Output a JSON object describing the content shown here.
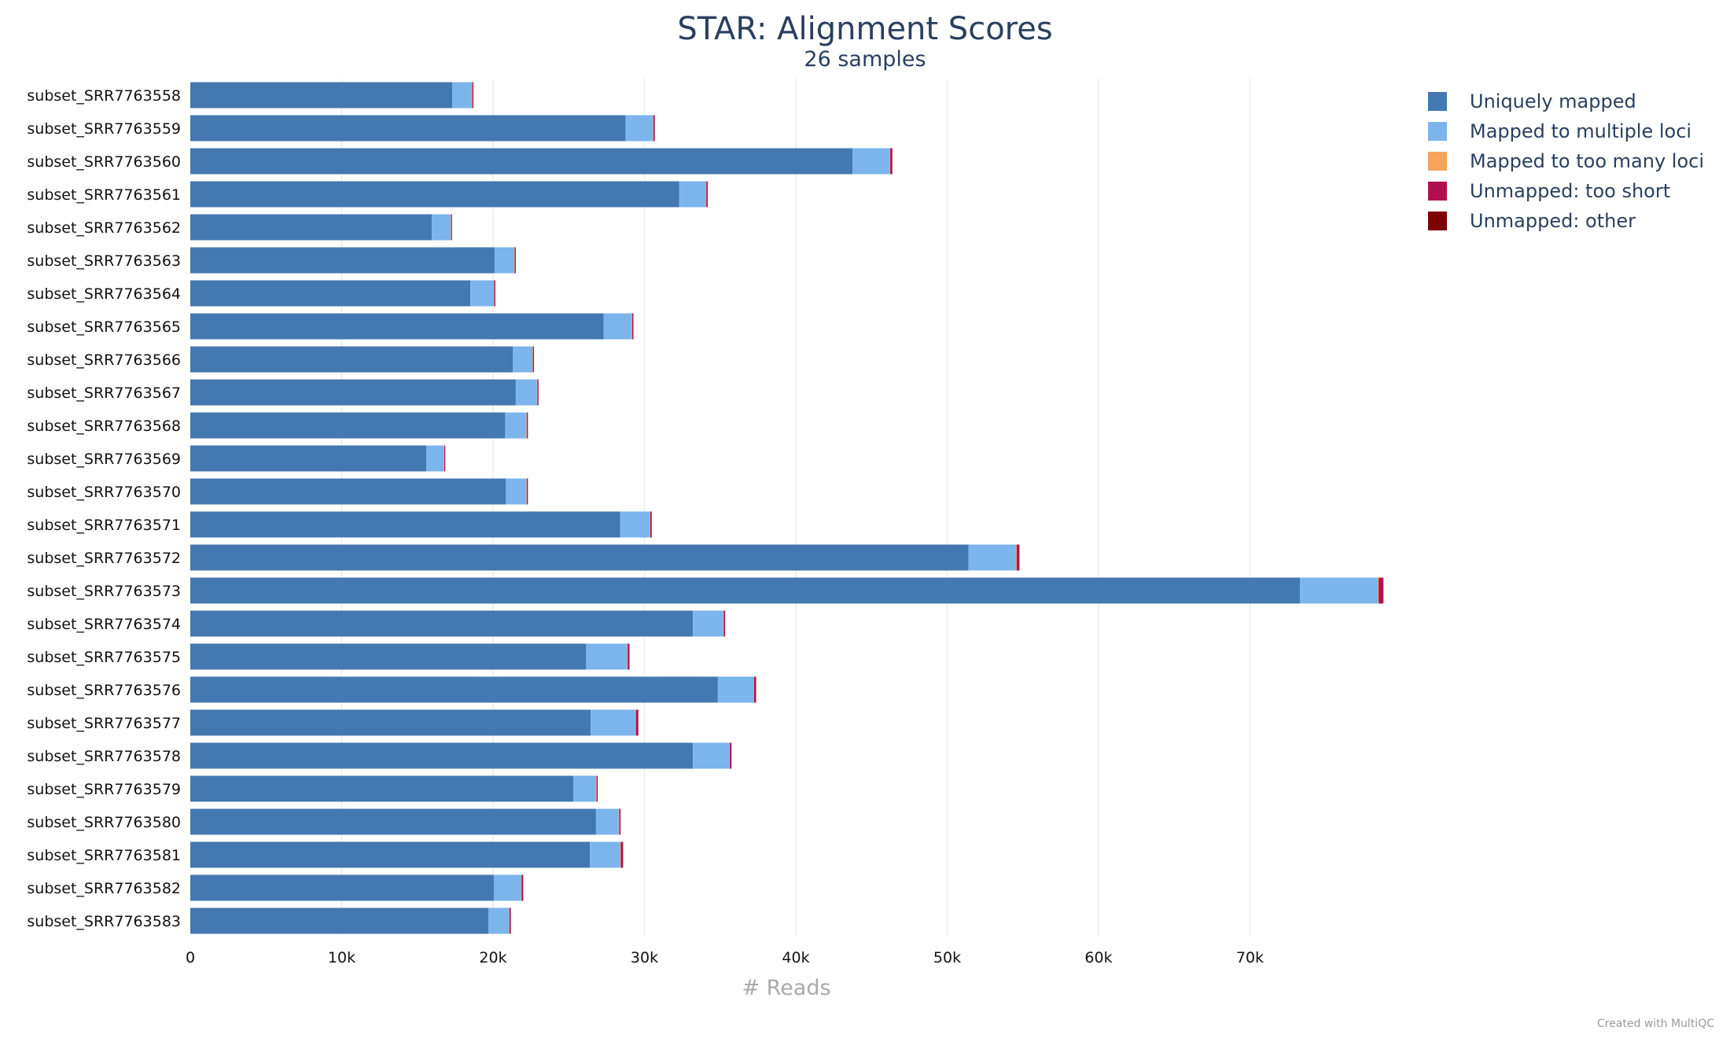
{
  "chart_data": {
    "type": "bar",
    "orientation": "horizontal",
    "stacked": true,
    "title": "STAR: Alignment Scores",
    "subtitle": "26 samples",
    "xlabel": "# Reads",
    "ylabel": "",
    "xlim": [
      0,
      80000
    ],
    "x_ticks": [
      {
        "value": 0,
        "label": "0"
      },
      {
        "value": 10000,
        "label": "10k"
      },
      {
        "value": 20000,
        "label": "20k"
      },
      {
        "value": 30000,
        "label": "30k"
      },
      {
        "value": 40000,
        "label": "40k"
      },
      {
        "value": 50000,
        "label": "50k"
      },
      {
        "value": 60000,
        "label": "60k"
      },
      {
        "value": 70000,
        "label": "70k"
      }
    ],
    "grid": "vertical",
    "legend_position": "top-right",
    "categories": [
      "subset_SRR7763558",
      "subset_SRR7763559",
      "subset_SRR7763560",
      "subset_SRR7763561",
      "subset_SRR7763562",
      "subset_SRR7763563",
      "subset_SRR7763564",
      "subset_SRR7763565",
      "subset_SRR7763566",
      "subset_SRR7763567",
      "subset_SRR7763568",
      "subset_SRR7763569",
      "subset_SRR7763570",
      "subset_SRR7763571",
      "subset_SRR7763572",
      "subset_SRR7763573",
      "subset_SRR7763574",
      "subset_SRR7763575",
      "subset_SRR7763576",
      "subset_SRR7763577",
      "subset_SRR7763578",
      "subset_SRR7763579",
      "subset_SRR7763580",
      "subset_SRR7763581",
      "subset_SRR7763582",
      "subset_SRR7763583"
    ],
    "series": [
      {
        "name": "Uniquely mapped",
        "color": "#4478b0",
        "values": [
          17300,
          28750,
          43750,
          32300,
          15950,
          20100,
          18500,
          27300,
          21300,
          21500,
          20800,
          15600,
          20850,
          28400,
          51400,
          73300,
          33200,
          26150,
          34850,
          26450,
          33200,
          25300,
          26800,
          26400,
          20050,
          19700
        ]
      },
      {
        "name": "Mapped to multiple loci",
        "color": "#7cb5ec",
        "values": [
          1300,
          1800,
          2450,
          1750,
          1250,
          1300,
          1550,
          1850,
          1300,
          1400,
          1400,
          1150,
          1350,
          1950,
          3150,
          5150,
          2000,
          2700,
          2350,
          2950,
          2400,
          1500,
          1500,
          2000,
          1800,
          1350
        ]
      },
      {
        "name": "Mapped to too many loci",
        "color": "#f7a35c",
        "values": [
          30,
          40,
          40,
          40,
          30,
          30,
          30,
          40,
          30,
          30,
          30,
          30,
          30,
          40,
          40,
          50,
          40,
          40,
          40,
          40,
          40,
          40,
          40,
          40,
          30,
          30
        ]
      },
      {
        "name": "Unmapped: too short",
        "color": "#b0114e",
        "values": [
          70,
          90,
          130,
          90,
          60,
          70,
          70,
          80,
          70,
          70,
          70,
          60,
          70,
          90,
          180,
          300,
          90,
          120,
          130,
          150,
          110,
          70,
          80,
          150,
          110,
          90
        ]
      },
      {
        "name": "Unmapped: other",
        "color": "#7f0000",
        "values": [
          5,
          5,
          10,
          5,
          5,
          5,
          5,
          5,
          5,
          5,
          5,
          5,
          5,
          5,
          10,
          20,
          5,
          5,
          10,
          10,
          5,
          5,
          5,
          5,
          5,
          5
        ]
      }
    ]
  },
  "credit": "Created with MultiQC"
}
